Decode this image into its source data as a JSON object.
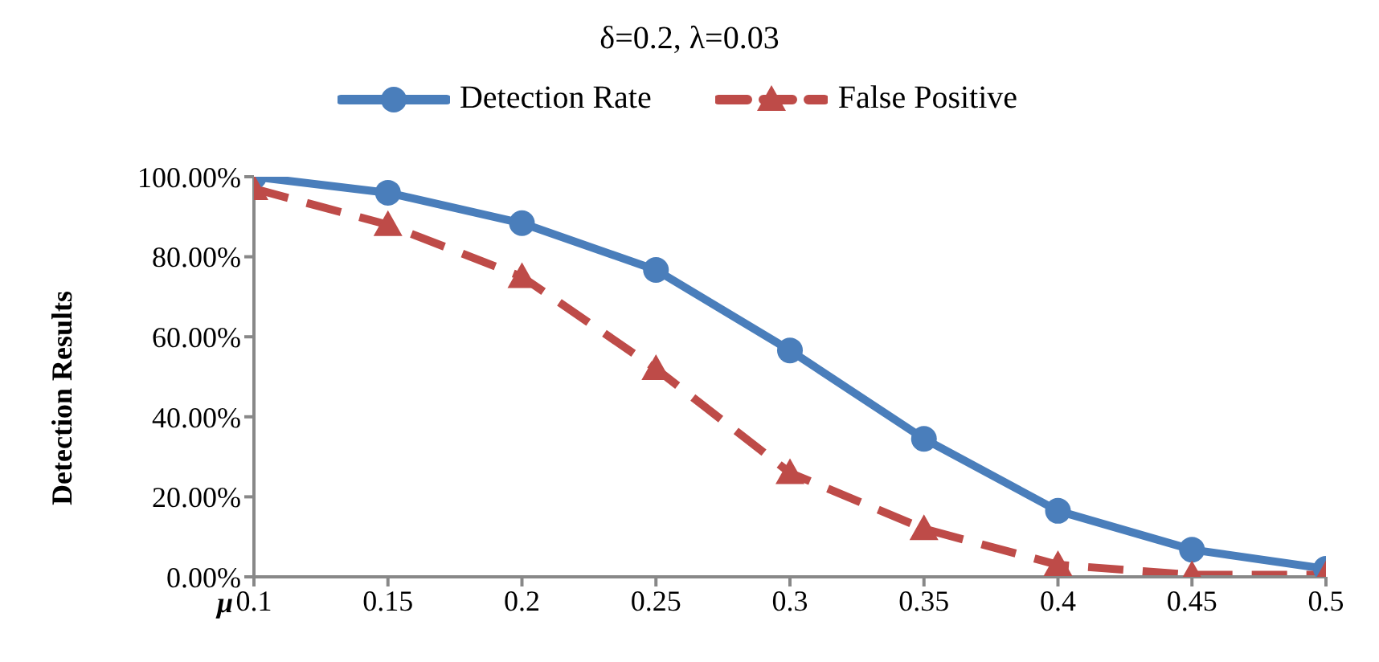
{
  "chart_data": {
    "type": "line",
    "title": "δ=0.2, λ=0.03",
    "xlabel": "μ",
    "ylabel": "Detection Results",
    "x": [
      0.1,
      0.15,
      0.2,
      0.25,
      0.3,
      0.35,
      0.4,
      0.45,
      0.5
    ],
    "series": [
      {
        "name": "Detection Rate",
        "color": "#4a7ebb",
        "marker": "circle",
        "line_style": "solid",
        "values": [
          100,
          96,
          88.4,
          76.7,
          56.6,
          34.5,
          16.5,
          6.8,
          2
        ]
      },
      {
        "name": "False Positive",
        "color": "#be4b48",
        "marker": "triangle",
        "line_style": "dashed",
        "values": [
          97,
          88,
          75,
          52,
          26,
          12,
          3,
          0.5,
          0.5
        ]
      }
    ],
    "xlim": [
      0.1,
      0.5
    ],
    "xticks": [
      0.1,
      0.15,
      0.2,
      0.25,
      0.3,
      0.35,
      0.4,
      0.45,
      0.5
    ],
    "ylim": [
      0,
      100
    ],
    "yticks": [
      {
        "value": 0,
        "label": "0.00%"
      },
      {
        "value": 20,
        "label": "20.00%"
      },
      {
        "value": 40,
        "label": "40.00%"
      },
      {
        "value": 60,
        "label": "60.00%"
      },
      {
        "value": 80,
        "label": "80.00%"
      },
      {
        "value": 100,
        "label": "100.00%"
      }
    ],
    "grid": false,
    "legend": "top"
  }
}
